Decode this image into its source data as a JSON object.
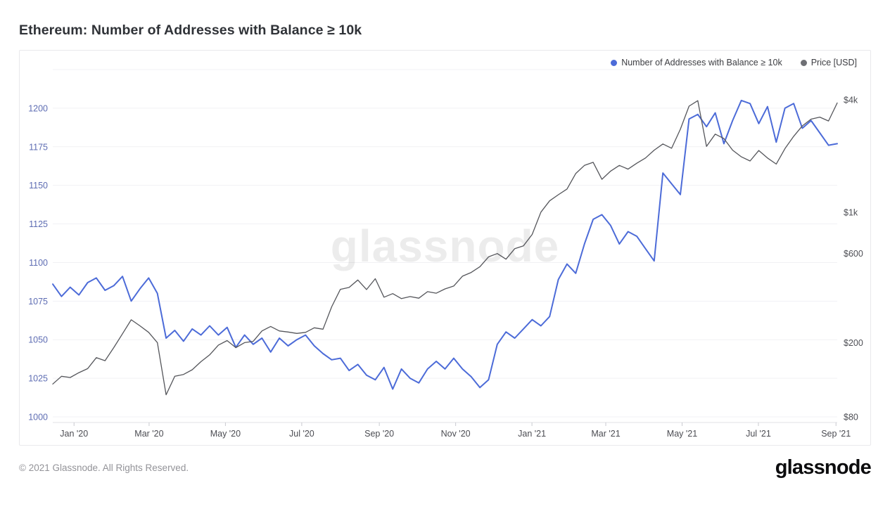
{
  "page": {
    "title": "Ethereum: Number of Addresses with Balance ≥ 10k",
    "footer_copyright": "© 2021 Glassnode. All Rights Reserved.",
    "footer_logo": "glassnode",
    "watermark": "glassnode"
  },
  "legend": [
    {
      "label": "Number of Addresses with Balance ≥ 10k",
      "color": "#4c6bd8"
    },
    {
      "label": "Price [USD]",
      "color": "#6e6f74"
    }
  ],
  "chart_data": {
    "type": "line",
    "title": "Ethereum: Number of Addresses with Balance ≥ 10k",
    "grid": true,
    "legend_position": "top-right",
    "watermark": "glassnode",
    "colors": {
      "gridline": "#f1f1f4",
      "axis_line": "#e2e2e6",
      "tick_mark": "#c9cad0",
      "left_label": "#5e6db3",
      "right_label": "#4d4e54",
      "x_label": "#4b4c52"
    },
    "x_axis": {
      "start": "2019-12-15",
      "end": "2021-09-02",
      "ticks": [
        {
          "date": "2020-01-01",
          "label": "Jan '20"
        },
        {
          "date": "2020-03-01",
          "label": "Mar '20"
        },
        {
          "date": "2020-05-01",
          "label": "May '20"
        },
        {
          "date": "2020-07-01",
          "label": "Jul '20"
        },
        {
          "date": "2020-09-01",
          "label": "Sep '20"
        },
        {
          "date": "2020-11-01",
          "label": "Nov '20"
        },
        {
          "date": "2021-01-01",
          "label": "Jan '21"
        },
        {
          "date": "2021-03-01",
          "label": "Mar '21"
        },
        {
          "date": "2021-05-01",
          "label": "May '21"
        },
        {
          "date": "2021-07-01",
          "label": "Jul '21"
        },
        {
          "date": "2021-09-01",
          "label": "Sep '21"
        }
      ]
    },
    "left_axis": {
      "label": "Number of Addresses with Balance ≥ 10k",
      "scale": "linear",
      "min": 1000,
      "max": 1225,
      "ticks": [
        1000,
        1025,
        1050,
        1075,
        1100,
        1125,
        1150,
        1175,
        1200
      ],
      "grid_values": [
        1000,
        1025,
        1050,
        1075,
        1100,
        1125,
        1150,
        1175,
        1200,
        1225
      ]
    },
    "right_axis": {
      "label": "Price [USD]",
      "scale": "log",
      "anchor_value": 80,
      "top_value": 4000,
      "ticks": [
        {
          "value": 4000,
          "label": "$4k"
        },
        {
          "value": 1000,
          "label": "$1k"
        },
        {
          "value": 600,
          "label": "$600"
        },
        {
          "value": 200,
          "label": "$200"
        },
        {
          "value": 80,
          "label": "$80"
        }
      ]
    },
    "series": [
      {
        "name": "Number of Addresses with Balance ≥ 10k",
        "axis": "left",
        "color": "#4c6bd8",
        "width": 2,
        "interval_days": 7,
        "values": [
          1086,
          1078,
          1084,
          1079,
          1087,
          1090,
          1082,
          1085,
          1091,
          1075,
          1083,
          1090,
          1080,
          1051,
          1056,
          1049,
          1057,
          1053,
          1059,
          1053,
          1058,
          1045,
          1053,
          1047,
          1051,
          1042,
          1051,
          1046,
          1050,
          1053,
          1046,
          1041,
          1037,
          1038,
          1030,
          1034,
          1027,
          1024,
          1032,
          1018,
          1031,
          1025,
          1022,
          1031,
          1036,
          1031,
          1038,
          1031,
          1026,
          1019,
          1024,
          1047,
          1055,
          1051,
          1057,
          1063,
          1059,
          1065,
          1089,
          1099,
          1093,
          1112,
          1128,
          1131,
          1124,
          1112,
          1120,
          1117,
          1109,
          1101,
          1158,
          1151,
          1144,
          1193,
          1196,
          1188,
          1197,
          1177,
          1192,
          1205,
          1203,
          1190,
          1201,
          1178,
          1200,
          1203,
          1187,
          1192,
          1184,
          1176,
          1177
        ]
      },
      {
        "name": "Price [USD]",
        "axis": "right",
        "color": "#55565b",
        "width": 1.3,
        "interval_days": 7,
        "values": [
          120,
          132,
          130,
          138,
          145,
          166,
          160,
          188,
          223,
          265,
          246,
          227,
          200,
          105,
          132,
          135,
          143,
          158,
          172,
          194,
          205,
          188,
          200,
          203,
          231,
          244,
          231,
          228,
          224,
          227,
          240,
          236,
          311,
          386,
          395,
          433,
          385,
          440,
          350,
          366,
          344,
          353,
          346,
          375,
          368,
          388,
          402,
          454,
          475,
          510,
          576,
          600,
          560,
          637,
          660,
          760,
          1000,
          1150,
          1240,
          1330,
          1610,
          1780,
          1850,
          1500,
          1660,
          1780,
          1700,
          1830,
          1950,
          2150,
          2320,
          2200,
          2780,
          3700,
          3960,
          2250,
          2620,
          2480,
          2150,
          1980,
          1880,
          2140,
          1950,
          1810,
          2190,
          2550,
          2900,
          3150,
          3230,
          3080,
          3850
        ]
      }
    ]
  }
}
